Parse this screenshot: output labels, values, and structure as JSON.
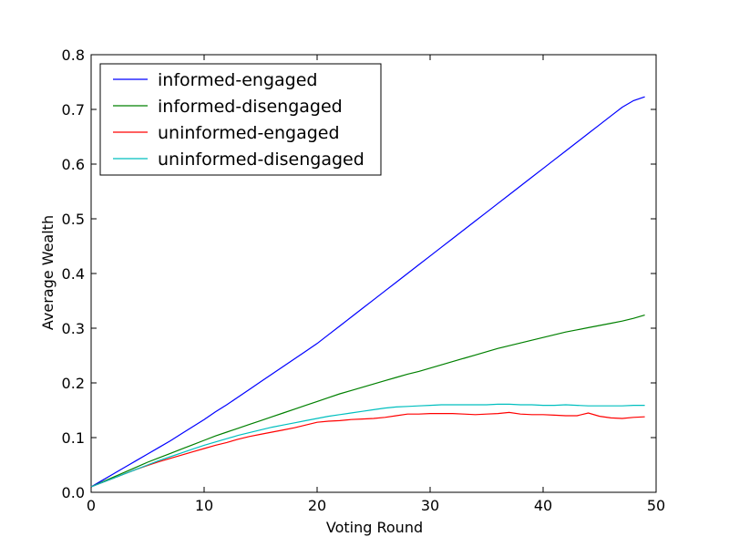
{
  "chart_data": {
    "type": "line",
    "xlabel": "Voting Round",
    "ylabel": "Average Wealth",
    "xlim": [
      0,
      50
    ],
    "ylim": [
      0.0,
      0.8
    ],
    "xticks": [
      "0",
      "10",
      "20",
      "30",
      "40",
      "50"
    ],
    "yticks": [
      "0.0",
      "0.1",
      "0.2",
      "0.3",
      "0.4",
      "0.5",
      "0.6",
      "0.7",
      "0.8"
    ],
    "grid": false,
    "legend_position": "top-left",
    "x": [
      0,
      1,
      2,
      3,
      4,
      5,
      6,
      7,
      8,
      9,
      10,
      11,
      12,
      13,
      14,
      15,
      16,
      17,
      18,
      19,
      20,
      21,
      22,
      23,
      24,
      25,
      26,
      27,
      28,
      29,
      30,
      31,
      32,
      33,
      34,
      35,
      36,
      37,
      38,
      39,
      40,
      41,
      42,
      43,
      44,
      45,
      46,
      47,
      48,
      49
    ],
    "series": [
      {
        "name": "informed-engaged",
        "color": "#0000ff",
        "values": [
          0.01,
          0.022,
          0.034,
          0.046,
          0.058,
          0.07,
          0.082,
          0.094,
          0.107,
          0.12,
          0.133,
          0.147,
          0.16,
          0.174,
          0.188,
          0.202,
          0.216,
          0.23,
          0.244,
          0.258,
          0.272,
          0.288,
          0.304,
          0.32,
          0.336,
          0.352,
          0.368,
          0.384,
          0.4,
          0.416,
          0.432,
          0.448,
          0.464,
          0.48,
          0.496,
          0.512,
          0.528,
          0.544,
          0.56,
          0.576,
          0.592,
          0.608,
          0.624,
          0.64,
          0.656,
          0.672,
          0.688,
          0.704,
          0.716,
          0.723
        ]
      },
      {
        "name": "informed-disengaged",
        "color": "#008000",
        "values": [
          0.01,
          0.019,
          0.028,
          0.037,
          0.046,
          0.055,
          0.063,
          0.071,
          0.079,
          0.087,
          0.095,
          0.103,
          0.11,
          0.117,
          0.124,
          0.131,
          0.138,
          0.145,
          0.152,
          0.159,
          0.166,
          0.173,
          0.18,
          0.186,
          0.192,
          0.198,
          0.204,
          0.21,
          0.216,
          0.221,
          0.227,
          0.233,
          0.239,
          0.245,
          0.251,
          0.257,
          0.263,
          0.268,
          0.273,
          0.278,
          0.283,
          0.288,
          0.293,
          0.297,
          0.301,
          0.305,
          0.309,
          0.313,
          0.318,
          0.324
        ]
      },
      {
        "name": "uninformed-engaged",
        "color": "#ff0000",
        "values": [
          0.01,
          0.018,
          0.026,
          0.034,
          0.042,
          0.049,
          0.056,
          0.062,
          0.068,
          0.074,
          0.08,
          0.086,
          0.091,
          0.097,
          0.102,
          0.106,
          0.11,
          0.114,
          0.118,
          0.123,
          0.128,
          0.13,
          0.131,
          0.133,
          0.134,
          0.135,
          0.137,
          0.14,
          0.143,
          0.143,
          0.144,
          0.144,
          0.144,
          0.143,
          0.142,
          0.143,
          0.144,
          0.146,
          0.143,
          0.142,
          0.142,
          0.141,
          0.14,
          0.14,
          0.145,
          0.139,
          0.136,
          0.135,
          0.137,
          0.138
        ]
      },
      {
        "name": "uninformed-disengaged",
        "color": "#00bfbf",
        "values": [
          0.01,
          0.018,
          0.026,
          0.034,
          0.042,
          0.05,
          0.058,
          0.065,
          0.072,
          0.079,
          0.086,
          0.092,
          0.098,
          0.104,
          0.109,
          0.114,
          0.119,
          0.123,
          0.127,
          0.131,
          0.135,
          0.139,
          0.142,
          0.145,
          0.148,
          0.151,
          0.154,
          0.156,
          0.157,
          0.158,
          0.159,
          0.16,
          0.16,
          0.16,
          0.16,
          0.16,
          0.161,
          0.161,
          0.16,
          0.16,
          0.159,
          0.159,
          0.16,
          0.159,
          0.158,
          0.158,
          0.158,
          0.158,
          0.159,
          0.159
        ]
      }
    ]
  }
}
